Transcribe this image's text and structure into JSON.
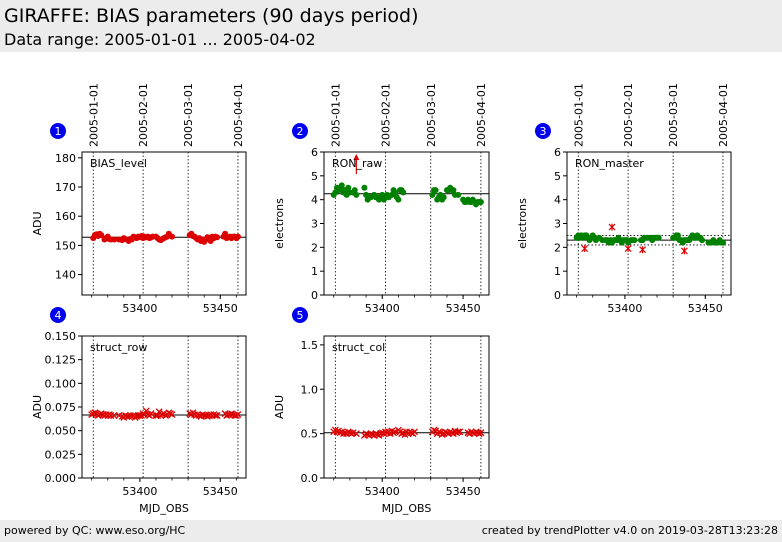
{
  "header": {
    "title": "GIRAFFE: BIAS parameters (90 days period)",
    "subtitle": "Data range: 2005-01-01 ... 2005-04-02"
  },
  "footer": {
    "left": "powered by QC: www.eso.org/HC",
    "right": "created by trendPlotter v4.0 on 2019-03-28T13:23:28"
  },
  "colors": {
    "red": "#dd0000",
    "green": "#008000",
    "badge": "#0000ee",
    "panel_bg": "#ececec"
  },
  "chart_data": [
    {
      "type": "scatter",
      "panel": "1",
      "label": "BIAS_level",
      "ylabel": "ADU",
      "xlabel": "",
      "xlim": [
        53364,
        53466
      ],
      "ylim": [
        133,
        182
      ],
      "yticks": [
        140,
        150,
        160,
        170,
        180
      ],
      "xticks": [
        53400,
        53450
      ],
      "top_date_labels": [
        {
          "label": "2005-01-01",
          "mjd": 53371
        },
        {
          "label": "2005-02-01",
          "mjd": 53402
        },
        {
          "label": "2005-03-01",
          "mjd": 53430
        },
        {
          "label": "2005-04-01",
          "mjd": 53461
        }
      ],
      "reference_lines": [
        {
          "value": 152.8,
          "style": "solid"
        }
      ],
      "series": [
        {
          "marker": "circle",
          "color": "red",
          "x": [
            53371,
            53372,
            53373,
            53374,
            53375,
            53376,
            53378,
            53379,
            53380,
            53381,
            53382,
            53384,
            53387,
            53389,
            53390,
            53392,
            53393,
            53394,
            53395,
            53396,
            53397,
            53398,
            53399,
            53400,
            53401,
            53402,
            53403,
            53404,
            53405,
            53406,
            53407,
            53408,
            53410,
            53411,
            53412,
            53413,
            53414,
            53415,
            53416,
            53417,
            53418,
            53420,
            53431,
            53432,
            53433,
            53434,
            53435,
            53436,
            53437,
            53438,
            53439,
            53440,
            53441,
            53442,
            53443,
            53444,
            53445,
            53446,
            53447,
            53448,
            53452,
            53453,
            53454,
            53455,
            53456,
            53457,
            53458,
            53459,
            53460,
            53461
          ],
          "y": [
            152.5,
            153.5,
            153.8,
            153.2,
            154,
            153.5,
            152,
            152.5,
            153,
            152.2,
            152,
            152,
            152,
            151.8,
            152.5,
            152,
            151.5,
            152.2,
            152,
            153,
            152.8,
            152.5,
            153,
            152.8,
            153.2,
            152.5,
            153,
            152.8,
            153,
            152.5,
            152.8,
            153,
            153,
            152.5,
            152,
            151.8,
            152.2,
            152.5,
            152.8,
            153,
            154,
            153,
            153.5,
            154,
            153.2,
            153,
            152.5,
            152,
            152.5,
            151.5,
            152,
            151.2,
            152,
            152.8,
            152.5,
            151.5,
            153,
            152.5,
            153,
            152.8,
            153,
            154,
            152.5,
            152.8,
            153,
            152.5,
            153,
            153,
            152.5,
            153
          ]
        }
      ]
    },
    {
      "type": "scatter",
      "panel": "2",
      "label": "RON_raw",
      "ylabel": "electrons",
      "xlabel": "",
      "xlim": [
        53364,
        53466
      ],
      "ylim": [
        0,
        6
      ],
      "yticks": [
        0,
        1,
        2,
        3,
        4,
        5,
        6
      ],
      "xticks": [
        53400,
        53450
      ],
      "top_date_labels": [
        {
          "label": "2005-01-01",
          "mjd": 53371
        },
        {
          "label": "2005-02-01",
          "mjd": 53402
        },
        {
          "label": "2005-03-01",
          "mjd": 53430
        },
        {
          "label": "2005-04-01",
          "mjd": 53461
        }
      ],
      "reference_lines": [
        {
          "value": 4.25,
          "style": "solid"
        }
      ],
      "series": [
        {
          "marker": "circle",
          "color": "green",
          "x": [
            53370,
            53371,
            53372,
            53373,
            53374,
            53375,
            53376,
            53377,
            53378,
            53379,
            53380,
            53382,
            53383,
            53384,
            53389,
            53390,
            53391,
            53392,
            53393,
            53395,
            53396,
            53397,
            53398,
            53399,
            53400,
            53401,
            53402,
            53403,
            53404,
            53406,
            53407,
            53408,
            53409,
            53410,
            53411,
            53412,
            53413,
            53431,
            53432,
            53433,
            53434,
            53435,
            53436,
            53437,
            53438,
            53440,
            53441,
            53442,
            53443,
            53444,
            53445,
            53447,
            53450,
            53451,
            53452,
            53453,
            53454,
            53455,
            53456,
            53457,
            53458,
            53459,
            53460,
            53461
          ],
          "y": [
            4.2,
            4.3,
            4.5,
            4.4,
            4.5,
            4.6,
            4.3,
            4.4,
            4.2,
            4.5,
            4.3,
            4.3,
            4.4,
            4.2,
            4.5,
            4.2,
            4.0,
            4.1,
            4.1,
            4.2,
            4.1,
            4.1,
            4.0,
            4.1,
            4.2,
            4.0,
            4.1,
            4.2,
            4.1,
            4.2,
            4.4,
            4.3,
            4.1,
            4.0,
            4.4,
            4.4,
            4.3,
            4.2,
            4.4,
            4.4,
            4.0,
            4.1,
            4.2,
            4.0,
            4.1,
            4.4,
            4.4,
            4.5,
            4.4,
            4.4,
            4.2,
            4.2,
            4.0,
            3.9,
            3.9,
            4.0,
            3.9,
            3.9,
            4.0,
            3.9,
            3.8,
            3.9,
            3.9,
            3.9
          ]
        },
        {
          "marker": "arrow",
          "color": "red",
          "x": [
            53384
          ],
          "y": [
            5.8
          ],
          "note": "out of range"
        }
      ]
    },
    {
      "type": "scatter",
      "panel": "3",
      "label": "RON_master",
      "ylabel": "electrons",
      "xlabel": "",
      "xlim": [
        53364,
        53466
      ],
      "ylim": [
        0,
        6
      ],
      "yticks": [
        0,
        1,
        2,
        3,
        4,
        5,
        6
      ],
      "xticks": [
        53400,
        53450
      ],
      "top_date_labels": [
        {
          "label": "2005-01-01",
          "mjd": 53371
        },
        {
          "label": "2005-02-01",
          "mjd": 53402
        },
        {
          "label": "2005-03-01",
          "mjd": 53430
        },
        {
          "label": "2005-04-01",
          "mjd": 53461
        }
      ],
      "reference_lines": [
        {
          "value": 2.3,
          "style": "solid"
        },
        {
          "value": 2.5,
          "style": "dotted"
        },
        {
          "value": 2.1,
          "style": "dotted"
        }
      ],
      "series": [
        {
          "marker": "circle",
          "color": "green",
          "x": [
            53370,
            53371,
            53372,
            53373,
            53374,
            53375,
            53376,
            53377,
            53378,
            53379,
            53380,
            53381,
            53382,
            53384,
            53386,
            53388,
            53389,
            53390,
            53391,
            53392,
            53393,
            53394,
            53395,
            53396,
            53397,
            53398,
            53399,
            53400,
            53401,
            53402,
            53404,
            53405,
            53406,
            53410,
            53411,
            53412,
            53414,
            53416,
            53417,
            53418,
            53419,
            53420,
            53421,
            53430,
            53431,
            53432,
            53433,
            53434,
            53435,
            53436,
            53437,
            53438,
            53439,
            53440,
            53441,
            53442,
            53443,
            53444,
            53445,
            53446,
            53447,
            53448,
            53452,
            53453,
            53454,
            53455,
            53456,
            53457,
            53458,
            53459,
            53460,
            53461
          ],
          "y": [
            2.4,
            2.5,
            2.4,
            2.5,
            2.4,
            2.5,
            2.5,
            2.4,
            2.3,
            2.4,
            2.5,
            2.4,
            2.3,
            2.4,
            2.3,
            2.3,
            2.3,
            2.2,
            2.3,
            2.2,
            2.3,
            2.3,
            2.3,
            2.4,
            2.3,
            2.2,
            2.3,
            2.3,
            2.3,
            2.2,
            2.3,
            2.3,
            2.3,
            2.3,
            2.3,
            2.4,
            2.4,
            2.4,
            2.3,
            2.4,
            2.4,
            2.4,
            2.4,
            2.4,
            2.4,
            2.5,
            2.5,
            2.3,
            2.3,
            2.2,
            2.3,
            2.3,
            2.3,
            2.3,
            2.4,
            2.5,
            2.4,
            2.4,
            2.5,
            2.4,
            2.4,
            2.3,
            2.2,
            2.2,
            2.2,
            2.3,
            2.2,
            2.2,
            2.2,
            2.3,
            2.2,
            2.2
          ]
        },
        {
          "marker": "asterisk",
          "color": "red",
          "x": [
            53375,
            53392,
            53402,
            53411,
            53437
          ],
          "y": [
            1.95,
            2.85,
            1.95,
            1.9,
            1.85
          ]
        }
      ]
    },
    {
      "type": "scatter",
      "panel": "4",
      "label": "struct_row",
      "ylabel": "ADU",
      "xlabel": "MJD_OBS",
      "xlim": [
        53364,
        53466
      ],
      "ylim": [
        0,
        0.15
      ],
      "yticks": [
        0.0,
        0.025,
        0.05,
        0.075,
        0.1,
        0.125,
        0.15
      ],
      "xticks": [
        53400,
        53450
      ],
      "reference_lines": [
        {
          "value": 0.0665,
          "style": "solid"
        }
      ],
      "series": [
        {
          "marker": "x",
          "color": "red",
          "x": [
            53370,
            53371,
            53372,
            53373,
            53374,
            53375,
            53376,
            53377,
            53378,
            53379,
            53380,
            53381,
            53382,
            53384,
            53387,
            53389,
            53390,
            53391,
            53392,
            53393,
            53394,
            53395,
            53396,
            53397,
            53398,
            53399,
            53400,
            53401,
            53402,
            53403,
            53404,
            53405,
            53406,
            53407,
            53410,
            53411,
            53412,
            53413,
            53414,
            53415,
            53416,
            53417,
            53418,
            53419,
            53420,
            53431,
            53432,
            53433,
            53434,
            53435,
            53436,
            53437,
            53438,
            53439,
            53440,
            53441,
            53442,
            53443,
            53444,
            53445,
            53446,
            53447,
            53448,
            53453,
            53454,
            53455,
            53456,
            53457,
            53458,
            53459,
            53460,
            53461
          ],
          "y": [
            0.067,
            0.068,
            0.069,
            0.068,
            0.066,
            0.067,
            0.068,
            0.067,
            0.066,
            0.067,
            0.066,
            0.067,
            0.066,
            0.066,
            0.066,
            0.065,
            0.064,
            0.066,
            0.065,
            0.065,
            0.066,
            0.065,
            0.066,
            0.064,
            0.065,
            0.066,
            0.066,
            0.066,
            0.068,
            0.067,
            0.071,
            0.067,
            0.066,
            0.068,
            0.066,
            0.066,
            0.07,
            0.066,
            0.067,
            0.068,
            0.066,
            0.067,
            0.069,
            0.068,
            0.067,
            0.068,
            0.067,
            0.069,
            0.067,
            0.066,
            0.067,
            0.066,
            0.065,
            0.067,
            0.066,
            0.066,
            0.065,
            0.066,
            0.067,
            0.066,
            0.067,
            0.066,
            0.066,
            0.068,
            0.066,
            0.067,
            0.067,
            0.068,
            0.067,
            0.066,
            0.066,
            0.067
          ]
        }
      ]
    },
    {
      "type": "scatter",
      "panel": "5",
      "label": "struct_col",
      "ylabel": "ADU",
      "xlabel": "MJD_OBS",
      "xlim": [
        53364,
        53466
      ],
      "ylim": [
        0,
        1.6
      ],
      "yticks": [
        0.0,
        0.5,
        1.0,
        1.5
      ],
      "xticks": [
        53400,
        53450
      ],
      "reference_lines": [
        {
          "value": 0.51,
          "style": "solid"
        }
      ],
      "series": [
        {
          "marker": "x",
          "color": "red",
          "x": [
            53370,
            53371,
            53372,
            53373,
            53374,
            53375,
            53376,
            53377,
            53378,
            53379,
            53380,
            53381,
            53382,
            53384,
            53389,
            53390,
            53391,
            53392,
            53393,
            53394,
            53395,
            53396,
            53397,
            53398,
            53399,
            53400,
            53401,
            53402,
            53403,
            53404,
            53405,
            53406,
            53407,
            53408,
            53410,
            53411,
            53412,
            53413,
            53414,
            53415,
            53416,
            53417,
            53418,
            53419,
            53420,
            53431,
            53432,
            53433,
            53434,
            53435,
            53436,
            53437,
            53438,
            53439,
            53440,
            53441,
            53442,
            53443,
            53444,
            53445,
            53446,
            53447,
            53448,
            53453,
            53454,
            53455,
            53456,
            53457,
            53458,
            53459,
            53460,
            53461
          ],
          "y": [
            0.52,
            0.54,
            0.52,
            0.53,
            0.51,
            0.52,
            0.5,
            0.51,
            0.5,
            0.52,
            0.51,
            0.5,
            0.51,
            0.5,
            0.48,
            0.5,
            0.49,
            0.48,
            0.5,
            0.49,
            0.48,
            0.5,
            0.49,
            0.48,
            0.5,
            0.51,
            0.5,
            0.52,
            0.51,
            0.52,
            0.5,
            0.53,
            0.51,
            0.52,
            0.54,
            0.52,
            0.5,
            0.51,
            0.49,
            0.52,
            0.5,
            0.52,
            0.51,
            0.5,
            0.52,
            0.52,
            0.54,
            0.53,
            0.5,
            0.52,
            0.51,
            0.49,
            0.5,
            0.52,
            0.51,
            0.5,
            0.52,
            0.51,
            0.5,
            0.53,
            0.51,
            0.52,
            0.52,
            0.51,
            0.5,
            0.52,
            0.51,
            0.5,
            0.52,
            0.51,
            0.5,
            0.51
          ]
        }
      ]
    }
  ]
}
